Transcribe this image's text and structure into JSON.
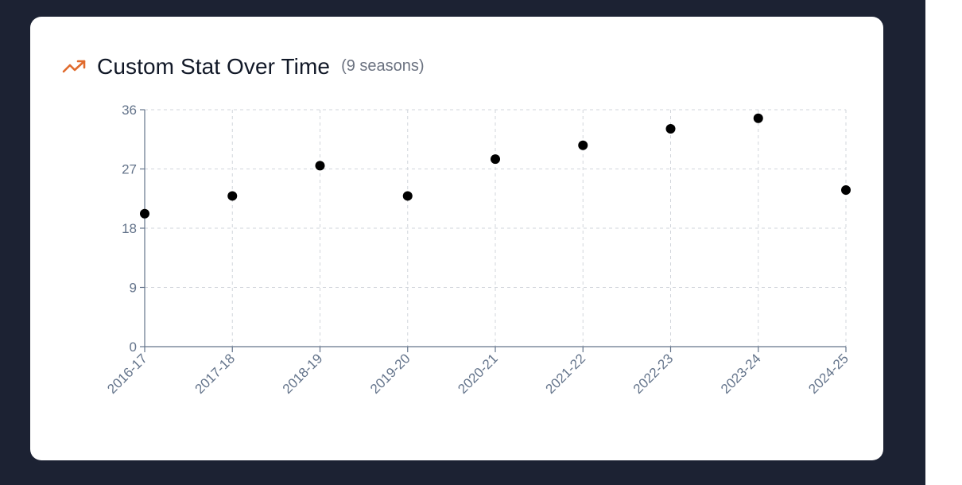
{
  "header": {
    "title": "Custom Stat Over Time",
    "subtitle": "(9 seasons)",
    "icon": "trending-up-icon",
    "accent_color": "#e06a2c"
  },
  "chart_data": {
    "type": "scatter",
    "title": "Custom Stat Over Time",
    "xlabel": "",
    "ylabel": "",
    "categories": [
      "2016-17",
      "2017-18",
      "2018-19",
      "2019-20",
      "2020-21",
      "2021-22",
      "2022-23",
      "2023-24",
      "2024-25"
    ],
    "values": [
      20.2,
      22.9,
      27.5,
      22.9,
      28.5,
      30.6,
      33.1,
      34.7,
      23.8
    ],
    "ylim": [
      0,
      36
    ],
    "yticks": [
      0,
      9,
      18,
      27,
      36
    ],
    "grid": true,
    "point_color": "#000000"
  }
}
